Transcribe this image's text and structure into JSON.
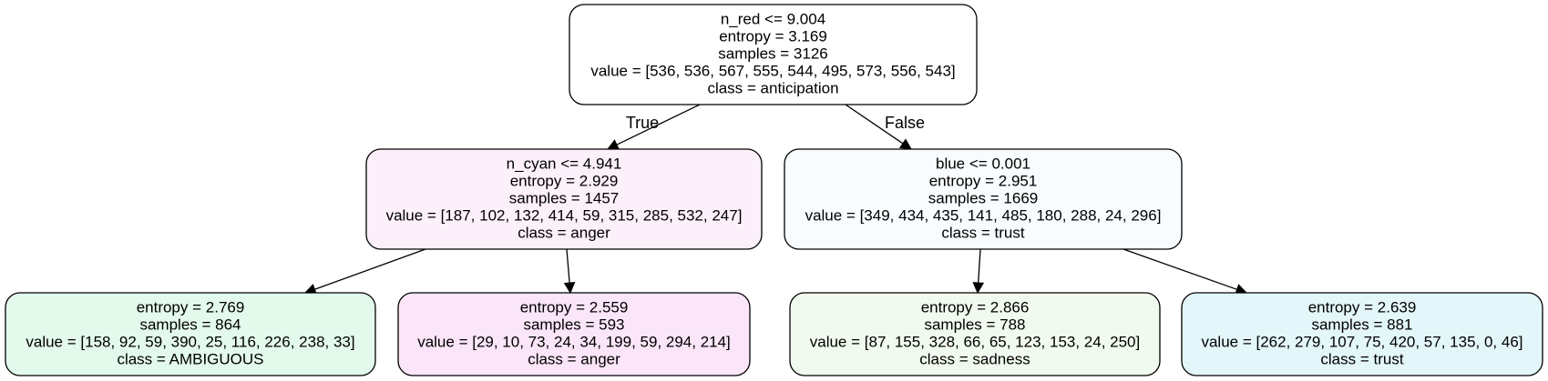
{
  "nodes": [
    {
      "id": "root",
      "fill": "#ffffff",
      "lines": [
        "n_red <= 9.004",
        "entropy = 3.169",
        "samples = 3126",
        "value = [536, 536, 567, 555, 544, 495, 573, 556, 543]",
        "class = anticipation"
      ]
    },
    {
      "id": "left",
      "fill": "#fcf0fa",
      "lines": [
        "n_cyan <= 4.941",
        "entropy = 2.929",
        "samples = 1457",
        "value = [187, 102, 132, 414, 59, 315, 285, 532, 247]",
        "class = anger"
      ]
    },
    {
      "id": "right",
      "fill": "#f8fcfe",
      "lines": [
        "blue <= 0.001",
        "entropy = 2.951",
        "samples = 1669",
        "value = [349, 434, 435, 141, 485, 180, 288, 24, 296]",
        "class = trust"
      ]
    },
    {
      "id": "leaf-1",
      "fill": "#e2f9ec",
      "lines": [
        "entropy = 2.769",
        "samples = 864",
        "value = [158, 92, 59, 390, 25, 116, 226, 238, 33]",
        "class = AMBIGUOUS"
      ]
    },
    {
      "id": "leaf-2",
      "fill": "#fbe5f8",
      "lines": [
        "entropy = 2.559",
        "samples = 593",
        "value = [29, 10, 73, 24, 34, 199, 59, 294, 214]",
        "class = anger"
      ]
    },
    {
      "id": "leaf-3",
      "fill": "#f1faee",
      "lines": [
        "entropy = 2.866",
        "samples = 788",
        "value = [87, 155, 328, 66, 65, 123, 153, 24, 250]",
        "class = sadness"
      ]
    },
    {
      "id": "leaf-4",
      "fill": "#e3f6f9",
      "lines": [
        "entropy = 2.639",
        "samples = 881",
        "value = [262, 279, 107, 75, 420, 57, 135, 0, 46]",
        "class = trust"
      ]
    }
  ],
  "edges": [
    {
      "from": "root",
      "to": "left",
      "label": "True"
    },
    {
      "from": "root",
      "to": "right",
      "label": "False"
    },
    {
      "from": "left",
      "to": "leaf-1",
      "label": ""
    },
    {
      "from": "left",
      "to": "leaf-2",
      "label": ""
    },
    {
      "from": "right",
      "to": "leaf-3",
      "label": ""
    },
    {
      "from": "right",
      "to": "leaf-4",
      "label": ""
    }
  ]
}
